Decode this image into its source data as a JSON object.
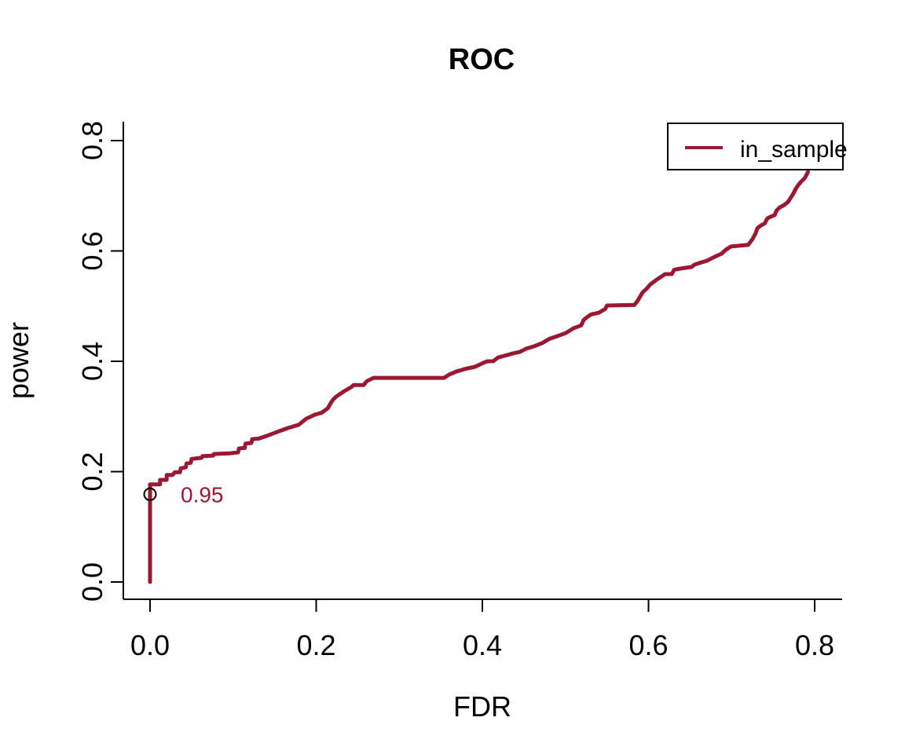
{
  "chart_data": {
    "type": "line",
    "title": "ROC",
    "xlabel": "FDR",
    "ylabel": "power",
    "xlim": [
      0,
      0.8
    ],
    "ylim": [
      0,
      0.8
    ],
    "grid": false,
    "legend_position": "top-right",
    "x_ticks": [
      0.0,
      0.2,
      0.4,
      0.6,
      0.8
    ],
    "x_tick_labels": [
      "0.0",
      "0.2",
      "0.4",
      "0.6",
      "0.8"
    ],
    "y_ticks": [
      0.0,
      0.2,
      0.4,
      0.6,
      0.8
    ],
    "y_tick_labels": [
      "0.0",
      "0.2",
      "0.4",
      "0.6",
      "0.8"
    ],
    "marker": {
      "x": 0,
      "y": 0.159,
      "label": "0.95",
      "shape": "open-circle",
      "color": "#000000"
    },
    "series": [
      {
        "name": "in_sample",
        "color": "#9A1832",
        "points": [
          [
            0.0,
            0.0
          ],
          [
            0.0,
            0.177
          ],
          [
            0.012,
            0.177
          ],
          [
            0.012,
            0.185
          ],
          [
            0.02,
            0.185
          ],
          [
            0.02,
            0.194
          ],
          [
            0.027,
            0.194
          ],
          [
            0.03,
            0.199
          ],
          [
            0.036,
            0.199
          ],
          [
            0.037,
            0.206
          ],
          [
            0.043,
            0.208
          ],
          [
            0.044,
            0.215
          ],
          [
            0.049,
            0.216
          ],
          [
            0.05,
            0.223
          ],
          [
            0.062,
            0.225
          ],
          [
            0.063,
            0.228
          ],
          [
            0.076,
            0.229
          ],
          [
            0.077,
            0.232
          ],
          [
            0.095,
            0.233
          ],
          [
            0.106,
            0.235
          ],
          [
            0.107,
            0.242
          ],
          [
            0.114,
            0.243
          ],
          [
            0.115,
            0.251
          ],
          [
            0.122,
            0.252
          ],
          [
            0.123,
            0.259
          ],
          [
            0.131,
            0.26
          ],
          [
            0.141,
            0.265
          ],
          [
            0.153,
            0.272
          ],
          [
            0.166,
            0.279
          ],
          [
            0.179,
            0.285
          ],
          [
            0.188,
            0.296
          ],
          [
            0.198,
            0.303
          ],
          [
            0.207,
            0.307
          ],
          [
            0.214,
            0.315
          ],
          [
            0.217,
            0.323
          ],
          [
            0.22,
            0.33
          ],
          [
            0.224,
            0.336
          ],
          [
            0.228,
            0.34
          ],
          [
            0.234,
            0.346
          ],
          [
            0.242,
            0.353
          ],
          [
            0.245,
            0.357
          ],
          [
            0.257,
            0.357
          ],
          [
            0.261,
            0.364
          ],
          [
            0.265,
            0.367
          ],
          [
            0.269,
            0.37
          ],
          [
            0.354,
            0.37
          ],
          [
            0.36,
            0.376
          ],
          [
            0.368,
            0.381
          ],
          [
            0.379,
            0.386
          ],
          [
            0.391,
            0.39
          ],
          [
            0.401,
            0.397
          ],
          [
            0.406,
            0.4
          ],
          [
            0.413,
            0.4
          ],
          [
            0.419,
            0.407
          ],
          [
            0.429,
            0.411
          ],
          [
            0.436,
            0.414
          ],
          [
            0.445,
            0.417
          ],
          [
            0.453,
            0.423
          ],
          [
            0.462,
            0.427
          ],
          [
            0.472,
            0.433
          ],
          [
            0.481,
            0.441
          ],
          [
            0.491,
            0.446
          ],
          [
            0.5,
            0.451
          ],
          [
            0.51,
            0.46
          ],
          [
            0.519,
            0.465
          ],
          [
            0.522,
            0.475
          ],
          [
            0.527,
            0.481
          ],
          [
            0.531,
            0.485
          ],
          [
            0.54,
            0.488
          ],
          [
            0.548,
            0.495
          ],
          [
            0.55,
            0.501
          ],
          [
            0.583,
            0.502
          ],
          [
            0.587,
            0.51
          ],
          [
            0.593,
            0.525
          ],
          [
            0.598,
            0.532
          ],
          [
            0.602,
            0.539
          ],
          [
            0.609,
            0.547
          ],
          [
            0.616,
            0.554
          ],
          [
            0.62,
            0.558
          ],
          [
            0.628,
            0.558
          ],
          [
            0.631,
            0.566
          ],
          [
            0.638,
            0.568
          ],
          [
            0.652,
            0.571
          ],
          [
            0.655,
            0.575
          ],
          [
            0.663,
            0.579
          ],
          [
            0.67,
            0.582
          ],
          [
            0.682,
            0.591
          ],
          [
            0.688,
            0.595
          ],
          [
            0.693,
            0.602
          ],
          [
            0.699,
            0.608
          ],
          [
            0.72,
            0.611
          ],
          [
            0.725,
            0.621
          ],
          [
            0.729,
            0.632
          ],
          [
            0.731,
            0.641
          ],
          [
            0.735,
            0.646
          ],
          [
            0.74,
            0.65
          ],
          [
            0.743,
            0.659
          ],
          [
            0.747,
            0.662
          ],
          [
            0.752,
            0.665
          ],
          [
            0.754,
            0.673
          ],
          [
            0.758,
            0.679
          ],
          [
            0.763,
            0.683
          ],
          [
            0.768,
            0.689
          ],
          [
            0.771,
            0.696
          ],
          [
            0.774,
            0.703
          ],
          [
            0.777,
            0.712
          ],
          [
            0.78,
            0.719
          ],
          [
            0.784,
            0.726
          ],
          [
            0.788,
            0.732
          ],
          [
            0.792,
            0.743
          ]
        ]
      }
    ]
  }
}
